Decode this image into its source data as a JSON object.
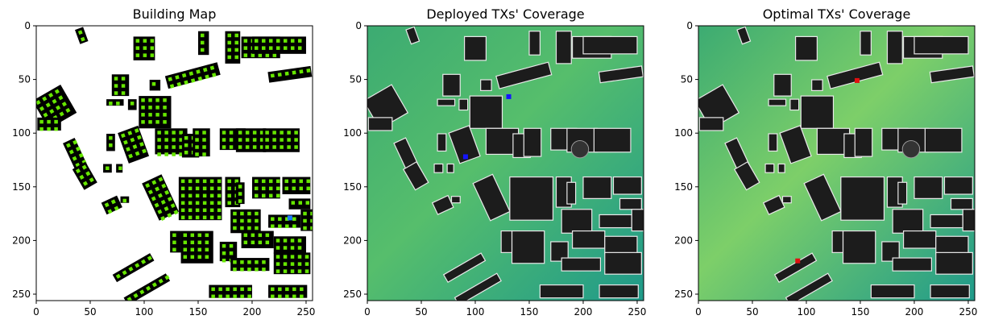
{
  "figure": {
    "background": "#ffffff",
    "colors": {
      "building_fill": "#000000",
      "building_dot": "#66e600",
      "coverage_low": "#1f9a8a",
      "coverage_high": "#7dcf69",
      "building_gray": "#1c1c1c",
      "building_edge": "#e8e8e8",
      "tx_blue": "#1414ff",
      "tx_red": "#e01010"
    }
  },
  "chart_data": [
    {
      "type": "heatmap",
      "title": "Building Map",
      "image_extent": [
        0,
        256
      ],
      "x_ticks": [
        0,
        50,
        100,
        150,
        200,
        250
      ],
      "y_ticks": [
        0,
        50,
        100,
        150,
        200,
        250
      ],
      "markers": [
        {
          "x": 235,
          "y": 179,
          "color": "#1c7cff"
        }
      ]
    },
    {
      "type": "heatmap",
      "title": "Deployed TXs' Coverage",
      "image_extent": [
        0,
        256
      ],
      "x_ticks": [
        0,
        50,
        100,
        150,
        200,
        250
      ],
      "y_ticks": [
        0,
        50,
        100,
        150,
        200,
        250
      ],
      "markers": [
        {
          "x": 131,
          "y": 66,
          "color": "#1414ff"
        },
        {
          "x": 91,
          "y": 122,
          "color": "#1414ff"
        }
      ]
    },
    {
      "type": "heatmap",
      "title": "Optimal TXs' Coverage",
      "image_extent": [
        0,
        256
      ],
      "x_ticks": [
        0,
        50,
        100,
        150,
        200,
        250
      ],
      "y_ticks": [
        0,
        50,
        100,
        150,
        200,
        250
      ],
      "markers": [
        {
          "x": 147,
          "y": 51,
          "color": "#e01010"
        },
        {
          "x": 92,
          "y": 219,
          "color": "#e01010"
        }
      ]
    }
  ]
}
